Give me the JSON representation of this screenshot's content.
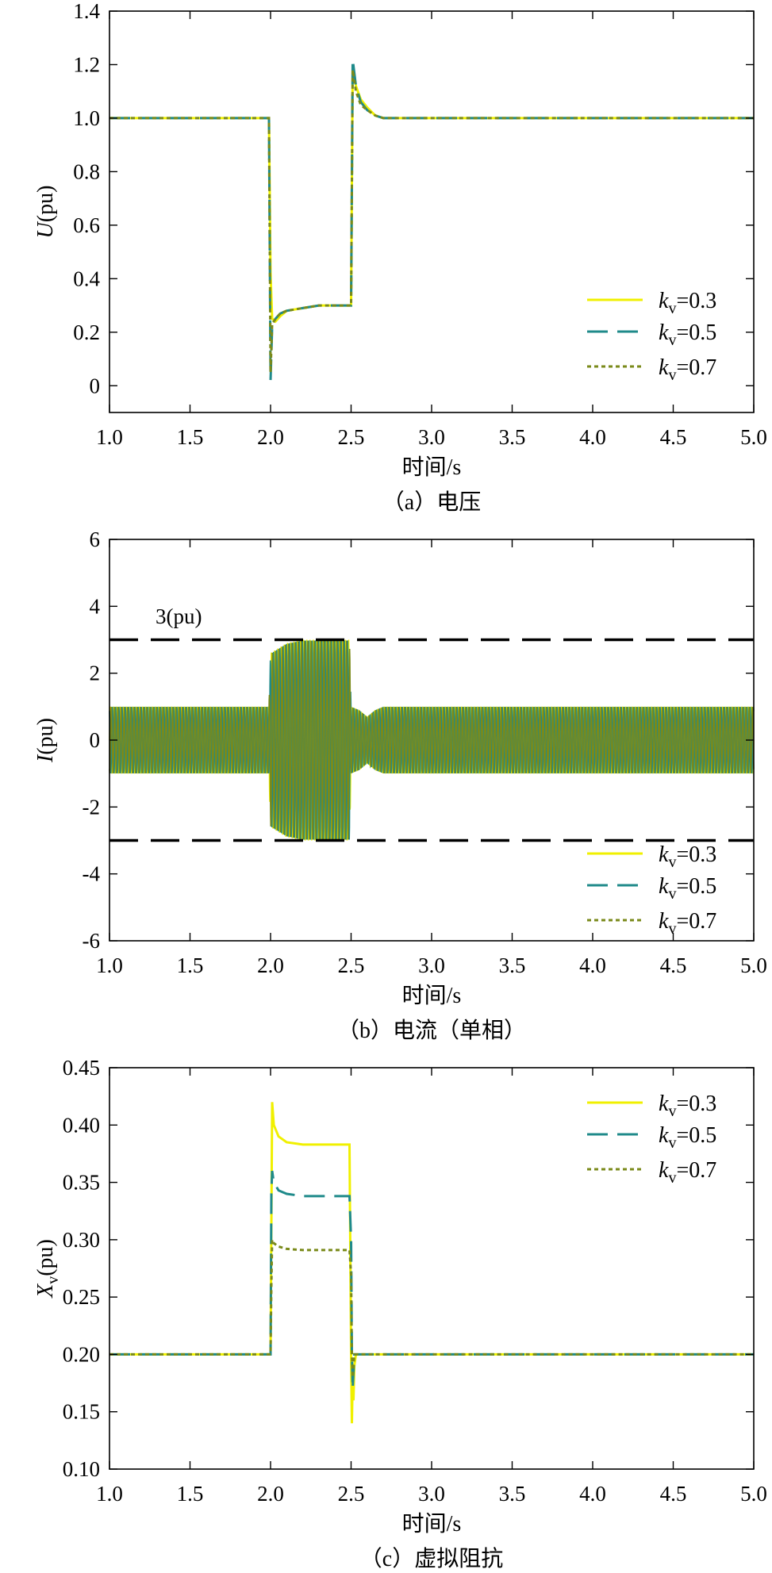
{
  "colors": {
    "kv03": "#f0f000",
    "kv05": "#1f8a8a",
    "kv07": "#7a8a1a",
    "limit": "#000000"
  },
  "chart_data": [
    {
      "type": "line",
      "caption": "（a）电压",
      "xlabel": "时间/s",
      "ylabel": "U(pu)",
      "xlim": [
        1.0,
        5.0
      ],
      "ylim": [
        -0.1,
        1.4
      ],
      "xticks": [
        "1.0",
        "1.5",
        "2.0",
        "2.5",
        "3.0",
        "3.5",
        "4.0",
        "4.5",
        "5.0"
      ],
      "yticks": [
        "0",
        "0.2",
        "0.4",
        "0.6",
        "0.8",
        "1.0",
        "1.2",
        "1.4"
      ],
      "legend_position": "lower-right",
      "legend": [
        {
          "base": "k",
          "sub": "v",
          "value": "=0.3"
        },
        {
          "base": "k",
          "sub": "v",
          "value": "=0.5"
        },
        {
          "base": "k",
          "sub": "v",
          "value": "=0.7"
        }
      ],
      "series": [
        {
          "name": "kv=0.3",
          "x": [
            1.0,
            1.99,
            2.0,
            2.01,
            2.03,
            2.06,
            2.1,
            2.2,
            2.3,
            2.4,
            2.5,
            2.51,
            2.53,
            2.56,
            2.6,
            2.65,
            2.7,
            3.0,
            5.0
          ],
          "y": [
            1.0,
            1.0,
            0.42,
            0.25,
            0.24,
            0.26,
            0.28,
            0.29,
            0.3,
            0.3,
            0.3,
            1.2,
            1.12,
            1.07,
            1.04,
            1.01,
            1.0,
            1.0,
            1.0
          ]
        },
        {
          "name": "kv=0.5",
          "x": [
            1.0,
            1.99,
            2.0,
            2.01,
            2.03,
            2.06,
            2.1,
            2.2,
            2.3,
            2.4,
            2.5,
            2.51,
            2.53,
            2.56,
            2.6,
            2.65,
            2.7,
            3.0,
            5.0
          ],
          "y": [
            1.0,
            1.0,
            0.02,
            0.22,
            0.25,
            0.27,
            0.28,
            0.29,
            0.3,
            0.3,
            0.3,
            1.22,
            1.12,
            1.06,
            1.03,
            1.01,
            1.0,
            1.0,
            1.0
          ]
        },
        {
          "name": "kv=0.7",
          "x": [
            1.0,
            1.99,
            2.0,
            2.01,
            2.03,
            2.06,
            2.1,
            2.2,
            2.3,
            2.4,
            2.5,
            2.51,
            2.53,
            2.56,
            2.6,
            2.65,
            2.7,
            3.0,
            5.0
          ],
          "y": [
            1.0,
            1.0,
            0.05,
            0.23,
            0.25,
            0.27,
            0.28,
            0.29,
            0.3,
            0.3,
            0.3,
            1.18,
            1.1,
            1.05,
            1.03,
            1.01,
            1.0,
            1.0,
            1.0
          ]
        }
      ]
    },
    {
      "type": "line",
      "caption": "（b）电流（单相）",
      "xlabel": "时间/s",
      "ylabel": "I(pu)",
      "xlim": [
        1.0,
        5.0
      ],
      "ylim": [
        -6,
        6
      ],
      "xticks": [
        "1.0",
        "1.5",
        "2.0",
        "2.5",
        "3.0",
        "3.5",
        "4.0",
        "4.5",
        "5.0"
      ],
      "yticks": [
        "-6",
        "-4",
        "-2",
        "0",
        "2",
        "4",
        "6"
      ],
      "annotation": "3(pu)",
      "limits": [
        3,
        -3
      ],
      "legend_position": "lower-right",
      "legend": [
        {
          "base": "k",
          "sub": "v",
          "value": "=0.3"
        },
        {
          "base": "k",
          "sub": "v",
          "value": "=0.5"
        },
        {
          "base": "k",
          "sub": "v",
          "value": "=0.7"
        }
      ],
      "envelope": {
        "x": [
          1.0,
          1.99,
          2.0,
          2.1,
          2.2,
          2.3,
          2.4,
          2.49,
          2.5,
          2.55,
          2.6,
          2.65,
          2.7,
          5.0
        ],
        "amp": [
          1.0,
          1.0,
          2.6,
          2.9,
          3.0,
          3.0,
          3.0,
          3.0,
          1.0,
          0.9,
          0.7,
          0.9,
          1.0,
          1.0
        ]
      },
      "frequency_hz": 50,
      "series": [
        {
          "name": "kv=0.3",
          "phase": 0.0
        },
        {
          "name": "kv=0.5",
          "phase": 2.09
        },
        {
          "name": "kv=0.7",
          "phase": 4.19
        }
      ]
    },
    {
      "type": "line",
      "caption": "（c）虚拟阻抗",
      "xlabel": "时间/s",
      "ylabel": "Xv(pu)",
      "ylabel_base": "X",
      "ylabel_sub": "v",
      "ylabel_tail": "(pu)",
      "xlim": [
        1.0,
        5.0
      ],
      "ylim": [
        0.1,
        0.45
      ],
      "xticks": [
        "1.0",
        "1.5",
        "2.0",
        "2.5",
        "3.0",
        "3.5",
        "4.0",
        "4.5",
        "5.0"
      ],
      "yticks": [
        "0.10",
        "0.15",
        "0.20",
        "0.25",
        "0.30",
        "0.35",
        "0.40",
        "0.45"
      ],
      "legend_position": "upper-right",
      "legend": [
        {
          "base": "k",
          "sub": "v",
          "value": "=0.3"
        },
        {
          "base": "k",
          "sub": "v",
          "value": "=0.5"
        },
        {
          "base": "k",
          "sub": "v",
          "value": "=0.7"
        }
      ],
      "series": [
        {
          "name": "kv=0.3",
          "x": [
            1.0,
            2.0,
            2.01,
            2.02,
            2.05,
            2.1,
            2.2,
            2.3,
            2.4,
            2.49,
            2.5,
            2.505,
            2.51,
            2.515,
            2.52,
            2.53,
            2.55,
            5.0
          ],
          "y": [
            0.2,
            0.2,
            0.42,
            0.4,
            0.39,
            0.385,
            0.383,
            0.383,
            0.383,
            0.383,
            0.2,
            0.14,
            0.18,
            0.16,
            0.19,
            0.2,
            0.2,
            0.2
          ]
        },
        {
          "name": "kv=0.5",
          "x": [
            1.0,
            2.0,
            2.005,
            2.01,
            2.02,
            2.05,
            2.1,
            2.2,
            2.3,
            2.4,
            2.49,
            2.5,
            2.505,
            2.51,
            2.52,
            2.55,
            5.0
          ],
          "y": [
            0.2,
            0.2,
            0.34,
            0.36,
            0.35,
            0.343,
            0.34,
            0.338,
            0.338,
            0.338,
            0.338,
            0.3,
            0.2,
            0.17,
            0.2,
            0.2,
            0.2
          ]
        },
        {
          "name": "kv=0.7",
          "x": [
            1.0,
            2.0,
            2.005,
            2.01,
            2.02,
            2.05,
            2.1,
            2.2,
            2.3,
            2.4,
            2.49,
            2.5,
            2.505,
            2.51,
            2.52,
            2.55,
            5.0
          ],
          "y": [
            0.2,
            0.2,
            0.26,
            0.3,
            0.297,
            0.294,
            0.292,
            0.291,
            0.291,
            0.291,
            0.291,
            0.27,
            0.2,
            0.18,
            0.2,
            0.2,
            0.2
          ]
        }
      ]
    }
  ]
}
